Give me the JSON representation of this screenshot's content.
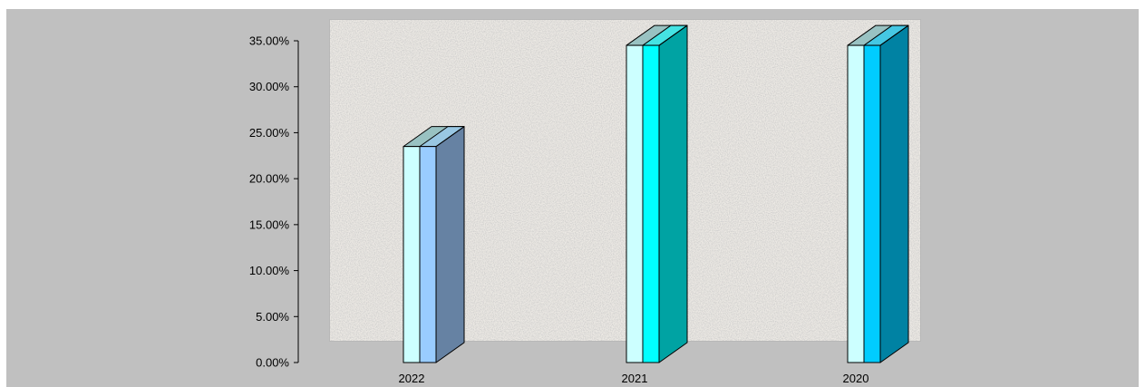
{
  "chart_data": {
    "type": "bar",
    "title": "",
    "xlabel": "",
    "ylabel": "",
    "categories": [
      "2022",
      "2021",
      "2020"
    ],
    "values": [
      0.235,
      0.345,
      0.345
    ],
    "ylim": [
      0,
      0.35
    ],
    "yticks": [
      0,
      0.05,
      0.1,
      0.15,
      0.2,
      0.25,
      0.3,
      0.35
    ],
    "ytick_labels": [
      "0.00%",
      "5.00%",
      "10.00%",
      "15.00%",
      "20.00%",
      "25.00%",
      "30.00%",
      "35.00%"
    ],
    "grid": false,
    "legend": "none",
    "bar_colors": [
      {
        "front_left": "#ccffff",
        "front_right": "#99ccff",
        "side": "#6682a3",
        "top": "#99c2c2"
      },
      {
        "front_left": "#ccffff",
        "front_right": "#00ffff",
        "side": "#00a3a3",
        "top": "#99c2c2"
      },
      {
        "front_left": "#ccffff",
        "front_right": "#00ccff",
        "side": "#0082a3",
        "top": "#99c2c2"
      }
    ],
    "plot_background": "#ece9e4",
    "outer_background": "#c0c0c0"
  }
}
